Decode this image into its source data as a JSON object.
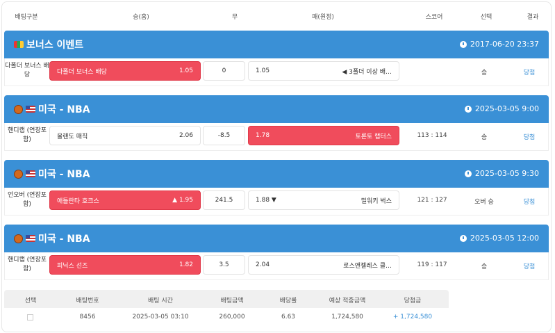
{
  "columns": [
    "배팅구분",
    "승(홈)",
    "무",
    "패(원정)",
    "스코어",
    "선택",
    "결과"
  ],
  "sections": [
    {
      "icon": "bonus-flag-icon",
      "title": "보너스 이벤트",
      "time": "2017-06-20 23:37",
      "row": {
        "type": "다폴더 보너스 배당",
        "home": "다폴더 보너스 배당",
        "home_odds": "1.05",
        "draw": "0",
        "away_odds": "1.05",
        "away": "◀ 3폴더 이상 배…",
        "selected": "home",
        "score": "",
        "pick": "승",
        "result": "당첨"
      }
    },
    {
      "icon": "us-flag-icon",
      "title": "미국 - NBA",
      "time": "2025-03-05 9:00",
      "row": {
        "type": "핸디캡 (연장포함)",
        "home": "올랜도 매직",
        "home_odds": "2.06",
        "draw": "-8.5",
        "away_odds": "1.78",
        "away": "토론토 랩터스",
        "selected": "away",
        "score": "113 : 114",
        "pick": "승",
        "result": "당첨"
      }
    },
    {
      "icon": "us-flag-icon",
      "title": "미국 - NBA",
      "time": "2025-03-05 9:30",
      "row": {
        "type": "언오버 (연장포함)",
        "home": "애틀란타 호크스",
        "home_odds": "▲ 1.95",
        "draw": "241.5",
        "away_odds": "1.88 ▼",
        "away": "밀워키 벅스",
        "selected": "home",
        "score": "121 : 127",
        "pick": "오버 승",
        "result": "당첨"
      }
    },
    {
      "icon": "us-flag-icon",
      "title": "미국 - NBA",
      "time": "2025-03-05 12:00",
      "row": {
        "type": "핸디캡 (연장포함)",
        "home": "피닉스 선즈",
        "home_odds": "1.82",
        "draw": "3.5",
        "away_odds": "2.04",
        "away": "로스앤젤레스 클…",
        "selected": "home",
        "score": "119 : 117",
        "pick": "승",
        "result": "당첨"
      }
    }
  ],
  "summary": {
    "headers": [
      "선택",
      "배팅번호",
      "배팅 시간",
      "배팅금액",
      "배당률",
      "예상 적중금액",
      "당첨금"
    ],
    "row": {
      "bet_no": "8456",
      "time": "2025-03-05 03:10",
      "amount": "260,000",
      "odds": "6.63",
      "expected": "1,724,580",
      "payout": "+ 1,724,580"
    }
  },
  "colors": {
    "header_blue": "#3a90d6",
    "selected_red": "#f04c5c"
  }
}
